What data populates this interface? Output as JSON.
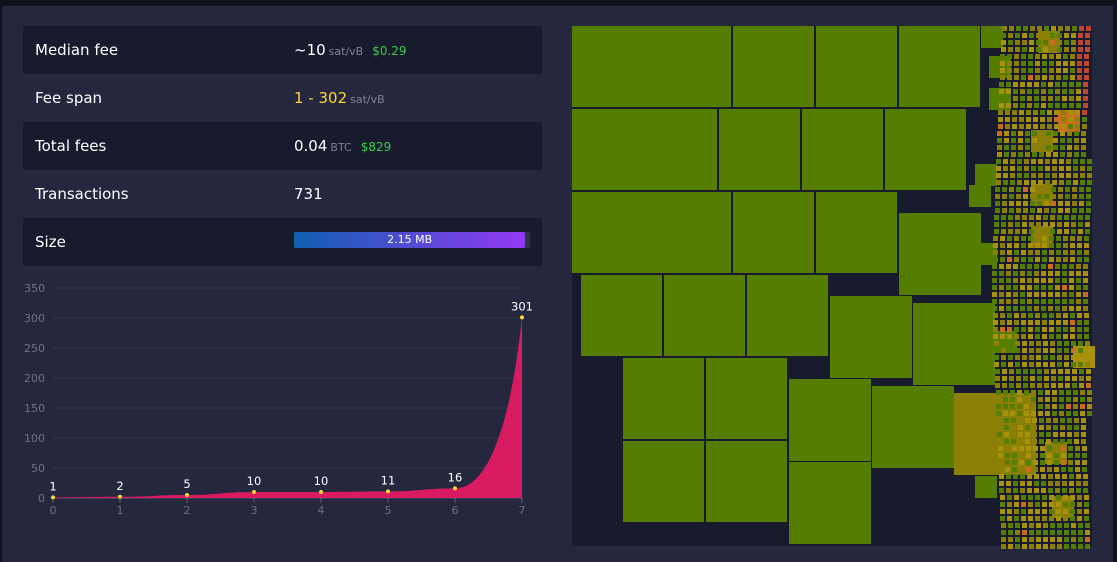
{
  "stats": {
    "median_fee": {
      "label": "Median fee",
      "value": "~10",
      "unit": "sat/vB",
      "usd": "$0.29"
    },
    "fee_span": {
      "label": "Fee span",
      "value": "1 - 302",
      "unit": "sat/vB"
    },
    "total_fees": {
      "label": "Total fees",
      "value": "0.04",
      "unit": "BTC",
      "usd": "$829"
    },
    "transactions": {
      "label": "Transactions",
      "value": "731"
    },
    "size": {
      "label": "Size",
      "value": "2.15 MB",
      "fill_fraction": 0.98
    }
  },
  "chart_data": {
    "type": "area",
    "x": [
      0,
      1,
      2,
      3,
      4,
      5,
      6,
      7
    ],
    "y": [
      1,
      2,
      5,
      10,
      10,
      11,
      16,
      301
    ],
    "data_labels": [
      "1",
      "2",
      "5",
      "10",
      "10",
      "11",
      "16",
      "301"
    ],
    "y_ticks": [
      "350",
      "300",
      "250",
      "200",
      "150",
      "100",
      "50",
      "0"
    ],
    "x_ticks": [
      "0",
      "1",
      "2",
      "3",
      "4",
      "5",
      "6",
      "7"
    ],
    "ylim": [
      0,
      350
    ],
    "grid": true,
    "colors": {
      "fill": "#d81b60",
      "point": "#ffd633"
    }
  },
  "colors": {
    "tx_green": "#557d00",
    "tx_olive": "#8b7f08",
    "tx_yellow": "#a8910b",
    "tx_orange": "#c96b20",
    "tx_red": "#c24532"
  }
}
